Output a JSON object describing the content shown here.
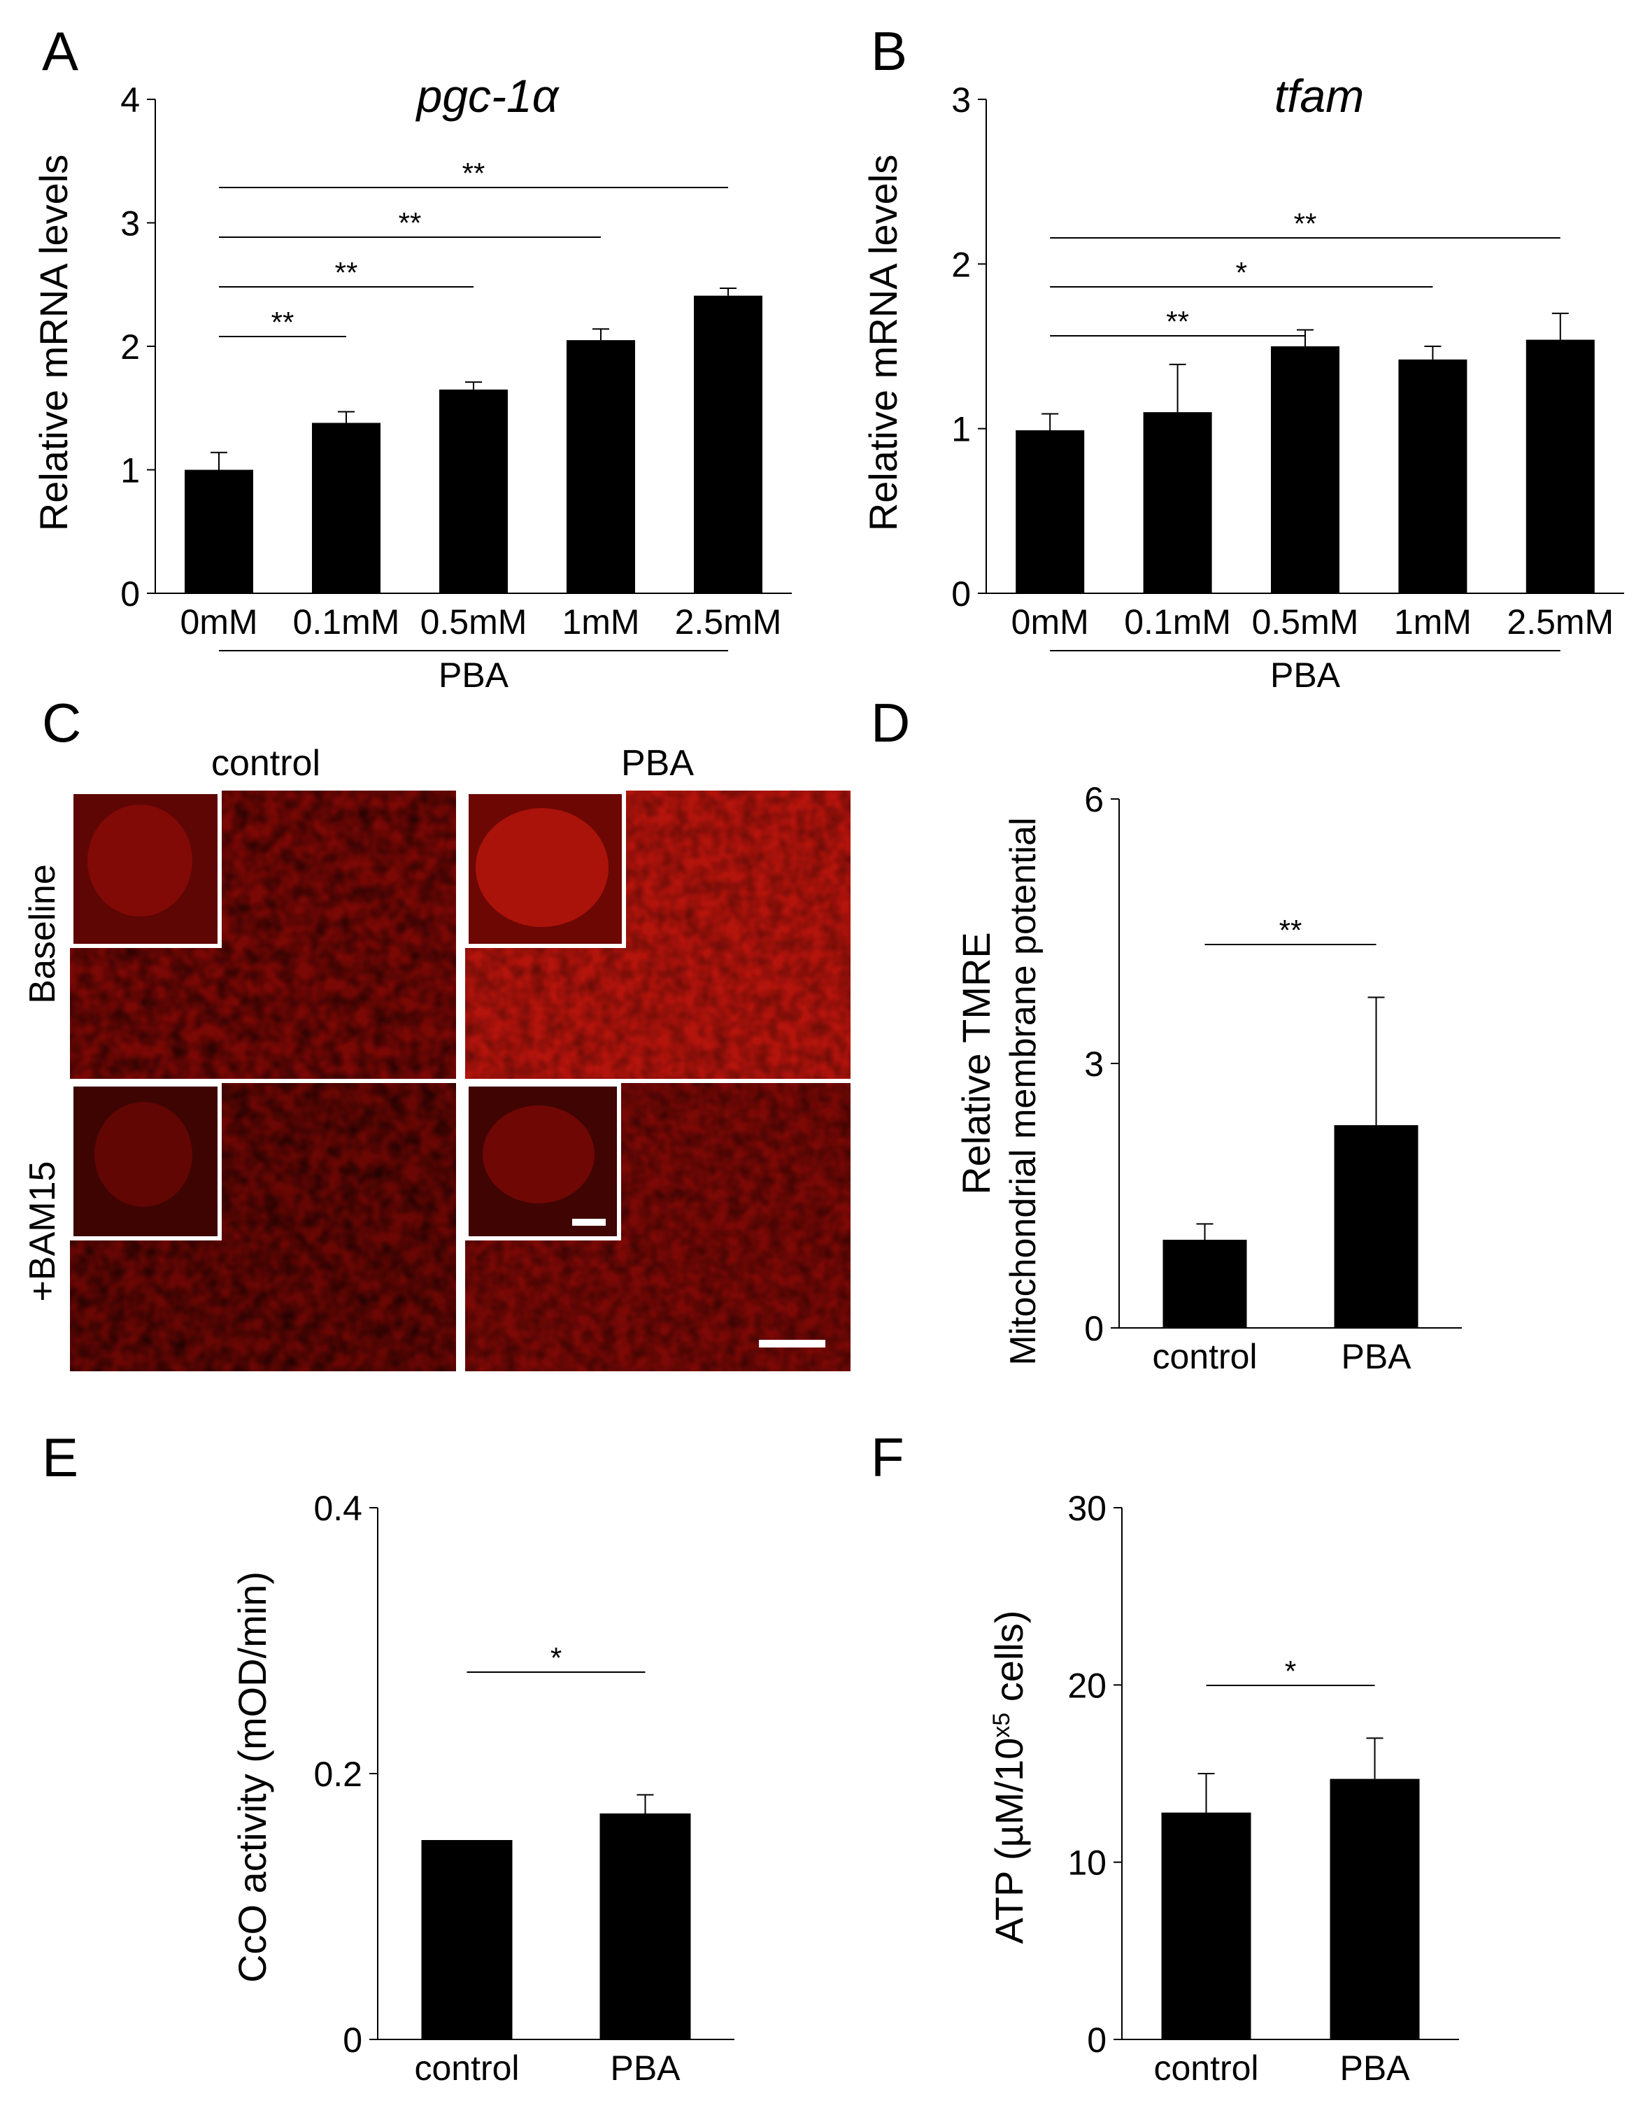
{
  "chart_data": [
    {
      "id": "A",
      "type": "bar",
      "panel_label": "A",
      "title": "pgc-1α",
      "ylabel": "Relative mRNA levels",
      "xlabel": "",
      "ylim": [
        0,
        4
      ],
      "yticks": [
        "0",
        "1",
        "2",
        "3",
        "4"
      ],
      "categories": [
        "0mM",
        "0.1mM",
        "0.5mM",
        "1mM",
        "2.5mM"
      ],
      "values": [
        1.0,
        1.38,
        1.65,
        2.05,
        2.41
      ],
      "errors": [
        0.14,
        0.09,
        0.06,
        0.09,
        0.06
      ],
      "group_label": "PBA",
      "significance": [
        {
          "from": 0,
          "to": 1,
          "label": "**"
        },
        {
          "from": 0,
          "to": 2,
          "label": "**"
        },
        {
          "from": 0,
          "to": 3,
          "label": "**"
        },
        {
          "from": 0,
          "to": 4,
          "label": "**"
        }
      ]
    },
    {
      "id": "B",
      "type": "bar",
      "panel_label": "B",
      "title": "tfam",
      "ylabel": "Relative mRNA levels",
      "xlabel": "",
      "ylim": [
        0,
        3
      ],
      "yticks": [
        "0",
        "1",
        "2",
        "3"
      ],
      "categories": [
        "0mM",
        "0.1mM",
        "0.5mM",
        "1mM",
        "2.5mM"
      ],
      "values": [
        0.99,
        1.1,
        1.5,
        1.42,
        1.54
      ],
      "errors": [
        0.1,
        0.29,
        0.1,
        0.08,
        0.16
      ],
      "group_label": "PBA",
      "significance": [
        {
          "from": 0,
          "to": 2,
          "label": "**"
        },
        {
          "from": 0,
          "to": 3,
          "label": "*"
        },
        {
          "from": 0,
          "to": 4,
          "label": "**"
        }
      ]
    },
    {
      "id": "D",
      "type": "bar",
      "panel_label": "D",
      "title": "",
      "ylabel": "Relative TMRE",
      "ylabel2": "Mitochondrial membrane potential",
      "xlabel": "",
      "ylim": [
        0,
        6
      ],
      "yticks": [
        "0",
        "3",
        "6"
      ],
      "categories": [
        "control",
        "PBA"
      ],
      "values": [
        1.0,
        2.3
      ],
      "errors": [
        0.18,
        1.45
      ],
      "significance": [
        {
          "from": 0,
          "to": 1,
          "label": "**"
        }
      ]
    },
    {
      "id": "E",
      "type": "bar",
      "panel_label": "E",
      "title": "",
      "ylabel": "CcO activity (mOD/min)",
      "xlabel": "",
      "ylim": [
        0,
        0.4
      ],
      "yticks": [
        "0",
        "0.2",
        "0.4"
      ],
      "categories": [
        "control",
        "PBA"
      ],
      "values": [
        0.15,
        0.17
      ],
      "errors": [
        0,
        0.014
      ],
      "significance": [
        {
          "from": 0,
          "to": 1,
          "label": "*"
        }
      ]
    },
    {
      "id": "F",
      "type": "bar",
      "panel_label": "F",
      "title": "",
      "ylabel": "ATP (µM/10",
      "ylabel_sup": "x5",
      "ylabel_tail": " cells)",
      "xlabel": "",
      "ylim": [
        0,
        30
      ],
      "yticks": [
        "0",
        "10",
        "20",
        "30"
      ],
      "categories": [
        "control",
        "PBA"
      ],
      "values": [
        12.8,
        14.7
      ],
      "errors": [
        2.2,
        2.3
      ],
      "significance": [
        {
          "from": 0,
          "to": 1,
          "label": "*"
        }
      ]
    }
  ],
  "panel_c": {
    "panel_label": "C",
    "column_labels": [
      "control",
      "PBA"
    ],
    "row_labels": [
      "Baseline",
      "+BAM15"
    ],
    "fill_color": "#9c0c08",
    "frame_color": "#ffffff"
  }
}
